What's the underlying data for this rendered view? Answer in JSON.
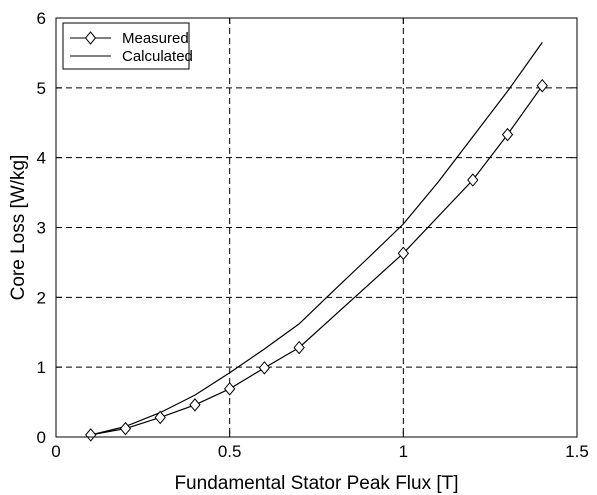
{
  "chart_data": {
    "type": "line",
    "xlabel": "Fundamental Stator Peak Flux [T]",
    "ylabel": "Core Loss [W/kg]",
    "xlim": [
      0,
      1.5
    ],
    "ylim": [
      0,
      6
    ],
    "xticks": [
      0,
      0.5,
      1,
      1.5
    ],
    "xtick_labels": [
      "0",
      "0.5",
      "1",
      "1.5"
    ],
    "yticks": [
      0,
      1,
      2,
      3,
      4,
      5,
      6
    ],
    "ytick_labels": [
      "0",
      "1",
      "2",
      "3",
      "4",
      "5",
      "6"
    ],
    "grid": true,
    "legend_position": "top-left",
    "series": [
      {
        "name": "Measured",
        "style": "line-with-diamond-markers",
        "color": "#000000",
        "x": [
          0.1,
          0.2,
          0.3,
          0.4,
          0.5,
          0.6,
          0.7,
          1.0,
          1.2,
          1.3,
          1.4
        ],
        "y": [
          0.03,
          0.12,
          0.28,
          0.46,
          0.69,
          0.99,
          1.28,
          2.63,
          3.68,
          4.33,
          5.03
        ]
      },
      {
        "name": "Calculated",
        "style": "line",
        "color": "#000000",
        "x": [
          0.1,
          0.2,
          0.3,
          0.4,
          0.5,
          0.6,
          0.7,
          0.8,
          0.9,
          1.0,
          1.1,
          1.2,
          1.3,
          1.4
        ],
        "y": [
          0.03,
          0.15,
          0.35,
          0.6,
          0.92,
          1.26,
          1.62,
          2.1,
          2.57,
          3.05,
          3.65,
          4.3,
          4.95,
          5.65
        ]
      }
    ]
  }
}
